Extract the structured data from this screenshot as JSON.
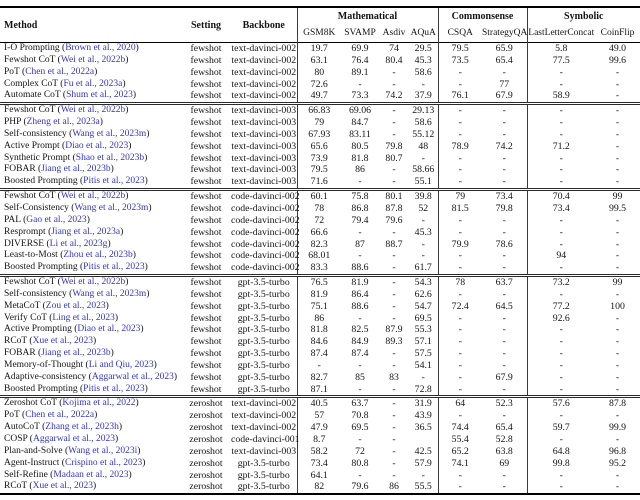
{
  "page": {
    "background": "#ffffff",
    "citation_color": "#3135c4",
    "rule_color": "#000000"
  },
  "table": {
    "columns": {
      "method": "Method",
      "setting": "Setting",
      "backbone": "Backbone",
      "groups": [
        {
          "label": "Mathematical",
          "cols": [
            "GSM8K",
            "SVAMP",
            "Asdiv",
            "AQuA"
          ]
        },
        {
          "label": "Commonsense",
          "cols": [
            "CSQA",
            "StrategyQA"
          ]
        },
        {
          "label": "Symbolic",
          "cols": [
            "LastLetterConcat",
            "CoinFlip"
          ]
        }
      ]
    },
    "sections": [
      {
        "rows": [
          {
            "method": "I-O Prompting",
            "cite": "Brown et al., 2020",
            "setting": "fewshot",
            "backbone": "text-davinci-002",
            "scores": [
              "19.7",
              "69.9",
              "74",
              "29.5",
              "79.5",
              "65.9",
              "5.8",
              "49.0"
            ]
          },
          {
            "method": "Fewshot CoT",
            "cite": "Wei et al., 2022b",
            "setting": "fewshot",
            "backbone": "text-davinci-002",
            "scores": [
              "63.1",
              "76.4",
              "80.4",
              "45.3",
              "73.5",
              "65.4",
              "77.5",
              "99.6"
            ]
          },
          {
            "method": "PoT",
            "cite": "Chen et al., 2022a",
            "setting": "fewshot",
            "backbone": "text-davinci-002",
            "scores": [
              "80",
              "89.1",
              "-",
              "58.6",
              "-",
              "-",
              "-",
              "-"
            ]
          },
          {
            "method": "Complex CoT",
            "cite": "Fu et al., 2023a",
            "setting": "fewshot",
            "backbone": "text-davinci-002",
            "scores": [
              "72.6",
              "-",
              "-",
              "-",
              "-",
              "77",
              "-",
              "-"
            ]
          },
          {
            "method": "Automate CoT",
            "cite": "Shum et al., 2023",
            "setting": "fewshot",
            "backbone": "text-davinci-002",
            "scores": [
              "49.7",
              "73.3",
              "74.2",
              "37.9",
              "76.1",
              "67.9",
              "58.9",
              "-"
            ]
          }
        ]
      },
      {
        "rows": [
          {
            "method": "Fewshot CoT",
            "cite": "Wei et al., 2022b",
            "setting": "fewshot",
            "backbone": "text-davinci-003",
            "scores": [
              "66.83",
              "69.06",
              "-",
              "29.13",
              "-",
              "-",
              "-",
              "-"
            ]
          },
          {
            "method": "PHP",
            "cite": "Zheng et al., 2023a",
            "setting": "fewshot",
            "backbone": "text-davinci-003",
            "scores": [
              "79",
              "84.7",
              "-",
              "58.6",
              "-",
              "-",
              "-",
              "-"
            ]
          },
          {
            "method": "Self-consistency",
            "cite": "Wang et al., 2023m",
            "setting": "fewshot",
            "backbone": "text-davinci-003",
            "scores": [
              "67.93",
              "83.11",
              "-",
              "55.12",
              "-",
              "-",
              "-",
              "-"
            ]
          },
          {
            "method": "Active Prompt",
            "cite": "Diao et al., 2023",
            "setting": "fewshot",
            "backbone": "text-davinci-003",
            "scores": [
              "65.6",
              "80.5",
              "79.8",
              "48",
              "78.9",
              "74.2",
              "71.2",
              "-"
            ]
          },
          {
            "method": "Synthetic Prompt",
            "cite": "Shao et al., 2023b",
            "setting": "fewshot",
            "backbone": "text-davinci-003",
            "scores": [
              "73.9",
              "81.8",
              "80.7",
              "-",
              "-",
              "-",
              "-",
              "-"
            ]
          },
          {
            "method": "FOBAR",
            "cite": "Jiang et al., 2023b",
            "setting": "fewshot",
            "backbone": "text-davinci-003",
            "scores": [
              "79.5",
              "86",
              "-",
              "58.66",
              "-",
              "-",
              "-",
              "-"
            ]
          },
          {
            "method": "Boosted Prompting",
            "cite": "Pitis et al., 2023",
            "setting": "fewshot",
            "backbone": "text-davinci-003",
            "scores": [
              "71.6",
              "-",
              "-",
              "55.1",
              "-",
              "-",
              "-",
              "-"
            ]
          }
        ]
      },
      {
        "rows": [
          {
            "method": "Fewshot CoT",
            "cite": "Wei et al., 2022b",
            "setting": "fewshot",
            "backbone": "code-davinci-002",
            "scores": [
              "60.1",
              "75.8",
              "80.1",
              "39.8",
              "79",
              "73.4",
              "70.4",
              "99"
            ]
          },
          {
            "method": "Self-Consistency",
            "cite": "Wang et al., 2023m",
            "setting": "fewshot",
            "backbone": "code-davinci-002",
            "scores": [
              "78",
              "86.8",
              "87.8",
              "52",
              "81.5",
              "79.8",
              "73.4",
              "99.5"
            ]
          },
          {
            "method": "PAL",
            "cite": "Gao et al., 2023",
            "setting": "fewshot",
            "backbone": "code-davinci-002",
            "scores": [
              "72",
              "79.4",
              "79.6",
              "-",
              "-",
              "-",
              "-",
              "-"
            ]
          },
          {
            "method": "Resprompt",
            "cite": "Jiang et al., 2023a",
            "setting": "fewshot",
            "backbone": "code-davinci-002",
            "scores": [
              "66.6",
              "-",
              "-",
              "45.3",
              "-",
              "-",
              "-",
              "-"
            ]
          },
          {
            "method": "DIVERSE",
            "cite": "Li et al., 2023g",
            "setting": "fewshot",
            "backbone": "code-davinci-002",
            "scores": [
              "82.3",
              "87",
              "88.7",
              "-",
              "79.9",
              "78.6",
              "-",
              "-"
            ]
          },
          {
            "method": "Least-to-Most",
            "cite": "Zhou et al., 2023b",
            "setting": "fewshot",
            "backbone": "code-davinci-002",
            "scores": [
              "68.01",
              "-",
              "-",
              "-",
              "-",
              "-",
              "94",
              "-"
            ]
          },
          {
            "method": "Boosted Prompting",
            "cite": "Pitis et al., 2023",
            "setting": "fewshot",
            "backbone": "code-davinci-002",
            "scores": [
              "83.3",
              "88.6",
              "-",
              "61.7",
              "-",
              "-",
              "-",
              "-"
            ]
          }
        ]
      },
      {
        "rows": [
          {
            "method": "Fewshot CoT",
            "cite": "Wei et al., 2022b",
            "setting": "fewshot",
            "backbone": "gpt-3.5-turbo",
            "scores": [
              "76.5",
              "81.9",
              "-",
              "54.3",
              "78",
              "63.7",
              "73.2",
              "99"
            ]
          },
          {
            "method": "Self-consistency",
            "cite": "Wang et al., 2023m",
            "setting": "fewshot",
            "backbone": "gpt-3.5-turbo",
            "scores": [
              "81.9",
              "86.4",
              "-",
              "62.6",
              "-",
              "-",
              "-",
              "-"
            ]
          },
          {
            "method": "MetaCoT",
            "cite": "Zou et al., 2023",
            "setting": "fewshot",
            "backbone": "gpt-3.5-turbo",
            "scores": [
              "75.1",
              "88.6",
              "-",
              "54.7",
              "72.4",
              "64.5",
              "77.2",
              "100"
            ]
          },
          {
            "method": "Verify CoT",
            "cite": "Ling et al., 2023",
            "setting": "fewshot",
            "backbone": "gpt-3.5-turbo",
            "scores": [
              "86",
              "-",
              "-",
              "69.5",
              "-",
              "-",
              "92.6",
              "-"
            ]
          },
          {
            "method": "Active Prompting",
            "cite": "Diao et al., 2023",
            "setting": "fewshot",
            "backbone": "gpt-3.5-turbo",
            "scores": [
              "81.8",
              "82.5",
              "87.9",
              "55.3",
              "-",
              "-",
              "-",
              "-"
            ]
          },
          {
            "method": "RCoT",
            "cite": "Xue et al., 2023",
            "setting": "fewshot",
            "backbone": "gpt-3.5-turbo",
            "scores": [
              "84.6",
              "84.9",
              "89.3",
              "57.1",
              "-",
              "-",
              "-",
              "-"
            ]
          },
          {
            "method": "FOBAR",
            "cite": "Jiang et al., 2023b",
            "setting": "fewshot",
            "backbone": "gpt-3.5-turbo",
            "scores": [
              "87.4",
              "87.4",
              "-",
              "57.5",
              "-",
              "-",
              "-",
              "-"
            ]
          },
          {
            "method": "Memory-of-Thought",
            "cite": "Li and Qiu, 2023",
            "setting": "fewshot",
            "backbone": "gpt-3.5-turbo",
            "scores": [
              "-",
              "-",
              "-",
              "54.1",
              "-",
              "-",
              "-",
              "-"
            ]
          },
          {
            "method": "Adaptive-consistency",
            "cite": "Aggarwal et al., 2023",
            "setting": "fewshot",
            "backbone": "gpt-3.5-turbo",
            "scores": [
              "82.7",
              "85",
              "83",
              "-",
              "-",
              "67.9",
              "-",
              "-"
            ]
          },
          {
            "method": "Boosted Prompting",
            "cite": "Pitis et al., 2023",
            "setting": "fewshot",
            "backbone": "gpt-3.5-turbo",
            "scores": [
              "87.1",
              "-",
              "-",
              "72.8",
              "-",
              "-",
              "-",
              "-"
            ]
          }
        ]
      },
      {
        "rows": [
          {
            "method": "Zeroshot CoT",
            "cite": "Kojima et al., 2022",
            "setting": "zeroshot",
            "backbone": "text-davinci-002",
            "scores": [
              "40.5",
              "63.7",
              "-",
              "31.9",
              "64",
              "52.3",
              "57.6",
              "87.8"
            ]
          },
          {
            "method": "PoT",
            "cite": "Chen et al., 2022a",
            "setting": "zeroshot",
            "backbone": "text-davinci-002",
            "scores": [
              "57",
              "70.8",
              "-",
              "43.9",
              "-",
              "-",
              "-",
              "-"
            ]
          },
          {
            "method": "AutoCoT",
            "cite": "Zhang et al., 2023h",
            "setting": "zeroshot",
            "backbone": "text-davinci-002",
            "scores": [
              "47.9",
              "69.5",
              "-",
              "36.5",
              "74.4",
              "65.4",
              "59.7",
              "99.9"
            ]
          },
          {
            "method": "COSP",
            "cite": "Aggarwal et al., 2023",
            "setting": "zeroshot",
            "backbone": "code-davinci-001",
            "scores": [
              "8.7",
              "-",
              "-",
              "",
              "55.4",
              "52.8",
              "-",
              "-"
            ]
          },
          {
            "method": "Plan-and-Solve",
            "cite": "Wang et al., 2023i",
            "setting": "zeroshot",
            "backbone": "text-davinci-003",
            "scores": [
              "58.2",
              "72",
              "-",
              "42.5",
              "65.2",
              "63.8",
              "64.8",
              "96.8"
            ]
          },
          {
            "method": "Agent-Instruct",
            "cite": "Crispino et al., 2023",
            "setting": "zeroshot",
            "backbone": "gpt-3.5-turbo",
            "scores": [
              "73.4",
              "80.8",
              "-",
              "57.9",
              "74.1",
              "69",
              "99.8",
              "95.2"
            ]
          },
          {
            "method": "Self-Refine",
            "cite": "Madaan et al., 2023",
            "setting": "zeroshot",
            "backbone": "gpt-3.5-turbo",
            "scores": [
              "64.1",
              "-",
              "-",
              "-",
              "-",
              "-",
              "-",
              "-"
            ]
          },
          {
            "method": "RCoT",
            "cite": "Xue et al., 2023",
            "setting": "zeroshot",
            "backbone": "gpt-3.5-turbo",
            "scores": [
              "82",
              "79.6",
              "86",
              "55.5",
              "-",
              "-",
              "-",
              "-"
            ]
          }
        ]
      }
    ]
  }
}
